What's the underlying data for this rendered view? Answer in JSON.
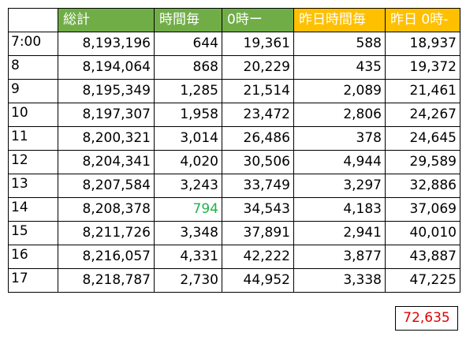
{
  "headers": [
    "",
    "総計",
    "時間毎",
    "0時ー",
    "昨日時間毎",
    "昨日 0時-"
  ],
  "highlight_color": "#22b14c",
  "header_colors": {
    "green": "#70ad47",
    "orange": "#ffc000"
  },
  "rows": [
    {
      "time": "7:00",
      "total": "8,193,196",
      "hourly": "644",
      "cumulative": "19,361",
      "yesterday_hourly": "588",
      "yesterday_cumulative": "18,937"
    },
    {
      "time": "8",
      "total": "8,194,064",
      "hourly": "868",
      "cumulative": "20,229",
      "yesterday_hourly": "435",
      "yesterday_cumulative": "19,372"
    },
    {
      "time": "9",
      "total": "8,195,349",
      "hourly": "1,285",
      "cumulative": "21,514",
      "yesterday_hourly": "2,089",
      "yesterday_cumulative": "21,461"
    },
    {
      "time": "10",
      "total": "8,197,307",
      "hourly": "1,958",
      "cumulative": "23,472",
      "yesterday_hourly": "2,806",
      "yesterday_cumulative": "24,267"
    },
    {
      "time": "11",
      "total": "8,200,321",
      "hourly": "3,014",
      "cumulative": "26,486",
      "yesterday_hourly": "378",
      "yesterday_cumulative": "24,645"
    },
    {
      "time": "12",
      "total": "8,204,341",
      "hourly": "4,020",
      "cumulative": "30,506",
      "yesterday_hourly": "4,944",
      "yesterday_cumulative": "29,589"
    },
    {
      "time": "13",
      "total": "8,207,584",
      "hourly": "3,243",
      "cumulative": "33,749",
      "yesterday_hourly": "3,297",
      "yesterday_cumulative": "32,886"
    },
    {
      "time": "14",
      "total": "8,208,378",
      "hourly": "794",
      "cumulative": "34,543",
      "yesterday_hourly": "4,183",
      "yesterday_cumulative": "37,069",
      "hourly_highlight": true
    },
    {
      "time": "15",
      "total": "8,211,726",
      "hourly": "3,348",
      "cumulative": "37,891",
      "yesterday_hourly": "2,941",
      "yesterday_cumulative": "40,010"
    },
    {
      "time": "16",
      "total": "8,216,057",
      "hourly": "4,331",
      "cumulative": "42,222",
      "yesterday_hourly": "3,877",
      "yesterday_cumulative": "43,887"
    },
    {
      "time": "17",
      "total": "8,218,787",
      "hourly": "2,730",
      "cumulative": "44,952",
      "yesterday_hourly": "3,338",
      "yesterday_cumulative": "47,225"
    }
  ],
  "grand_total": "72,635"
}
